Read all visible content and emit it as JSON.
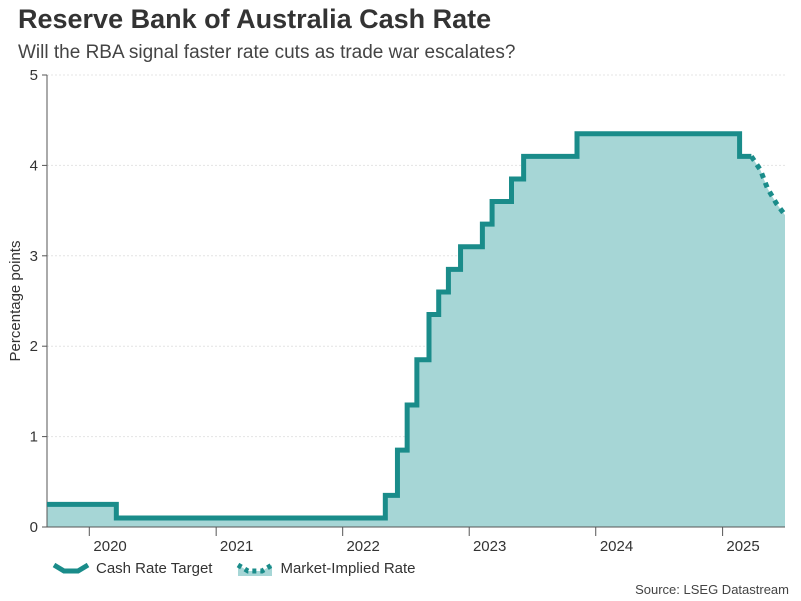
{
  "title": "Reserve Bank of Australia Cash Rate",
  "subtitle": "Will the RBA signal faster rate cuts as trade war escalates?",
  "source": "Source: LSEG Datastream",
  "colors": {
    "line": "#1a8c8a",
    "fill": "#a6d6d6",
    "axis": "#555555",
    "grid": "#e4e4e4"
  },
  "chart_data": {
    "type": "area",
    "title": "Reserve Bank of Australia Cash Rate",
    "subtitle": "Will the RBA signal faster rate cuts as trade war escalates?",
    "ylabel": "Percentage points",
    "xlabel": "",
    "ylim": [
      0,
      5
    ],
    "xlim": [
      "2019-09-01",
      "2025-06-30"
    ],
    "yticks": [
      0,
      1,
      2,
      3,
      4,
      5
    ],
    "xticks": [
      {
        "label": "2020",
        "date": "2020-03-01"
      },
      {
        "label": "2021",
        "date": "2021-03-01"
      },
      {
        "label": "2022",
        "date": "2022-03-01"
      },
      {
        "label": "2023",
        "date": "2023-03-01"
      },
      {
        "label": "2024",
        "date": "2024-03-01"
      },
      {
        "label": "2025",
        "date": "2025-03-01"
      }
    ],
    "grid": true,
    "legend_position": "bottom-left",
    "series": [
      {
        "name": "Cash Rate Target",
        "style": "solid-step",
        "points": [
          [
            "2019-09-01",
            0.25
          ],
          [
            "2020-03-19",
            0.1
          ],
          [
            "2022-05-04",
            0.35
          ],
          [
            "2022-06-08",
            0.85
          ],
          [
            "2022-07-06",
            1.35
          ],
          [
            "2022-08-03",
            1.85
          ],
          [
            "2022-09-07",
            2.35
          ],
          [
            "2022-10-05",
            2.6
          ],
          [
            "2022-11-02",
            2.85
          ],
          [
            "2022-12-07",
            3.1
          ],
          [
            "2023-02-08",
            3.35
          ],
          [
            "2023-03-08",
            3.6
          ],
          [
            "2023-05-03",
            3.85
          ],
          [
            "2023-06-07",
            4.1
          ],
          [
            "2023-11-08",
            4.35
          ],
          [
            "2025-02-19",
            4.1
          ],
          [
            "2025-03-25",
            4.1
          ]
        ]
      },
      {
        "name": "Market-Implied Rate",
        "style": "dotted",
        "points": [
          [
            "2025-03-25",
            4.1
          ],
          [
            "2025-04-20",
            3.95
          ],
          [
            "2025-05-10",
            3.75
          ],
          [
            "2025-06-05",
            3.58
          ],
          [
            "2025-06-30",
            3.45
          ]
        ]
      }
    ]
  }
}
